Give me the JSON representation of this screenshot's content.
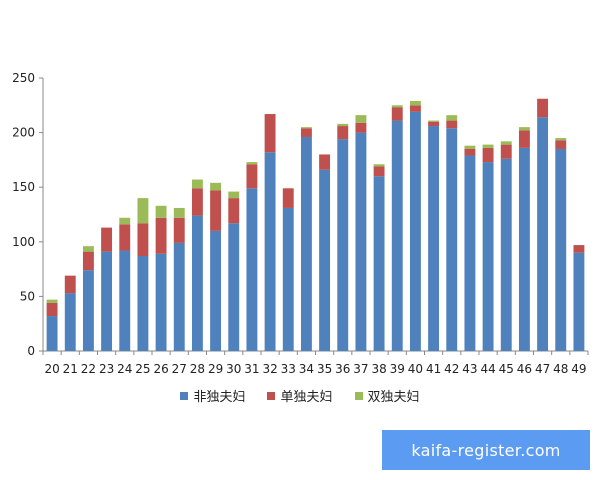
{
  "chart_data": {
    "type": "bar",
    "stacked": true,
    "categories": [
      "20",
      "21",
      "22",
      "23",
      "24",
      "25",
      "26",
      "27",
      "28",
      "29",
      "30",
      "31",
      "32",
      "33",
      "34",
      "35",
      "36",
      "37",
      "38",
      "39",
      "40",
      "41",
      "42",
      "43",
      "44",
      "45",
      "46",
      "47",
      "48",
      "49"
    ],
    "series": [
      {
        "name": "非独夫妇",
        "color": "#4f81bd",
        "values": [
          32,
          53,
          74,
          91,
          92,
          87,
          89,
          99,
          124,
          110,
          117,
          149,
          182,
          131,
          196,
          166,
          194,
          200,
          160,
          211,
          219,
          206,
          204,
          179,
          173,
          176,
          186,
          214,
          185,
          90
        ]
      },
      {
        "name": "单独夫妇",
        "color": "#c0504d",
        "values": [
          12,
          16,
          17,
          22,
          24,
          30,
          33,
          23,
          25,
          37,
          23,
          22,
          35,
          18,
          8,
          14,
          12,
          9,
          9,
          12,
          6,
          4,
          7,
          6,
          13,
          13,
          16,
          17,
          8,
          7
        ]
      },
      {
        "name": "双独夫妇",
        "color": "#9bbb59",
        "values": [
          3,
          0,
          5,
          0,
          6,
          23,
          11,
          9,
          8,
          7,
          6,
          2,
          0,
          0,
          1,
          0,
          2,
          7,
          2,
          2,
          4,
          1,
          5,
          3,
          3,
          3,
          3,
          0,
          2,
          0
        ]
      }
    ],
    "ylim": [
      0,
      250
    ],
    "yticks": [
      0,
      50,
      100,
      150,
      200,
      250
    ],
    "grid": false,
    "legend": "bottom"
  },
  "watermark": "kaifa-register.com"
}
